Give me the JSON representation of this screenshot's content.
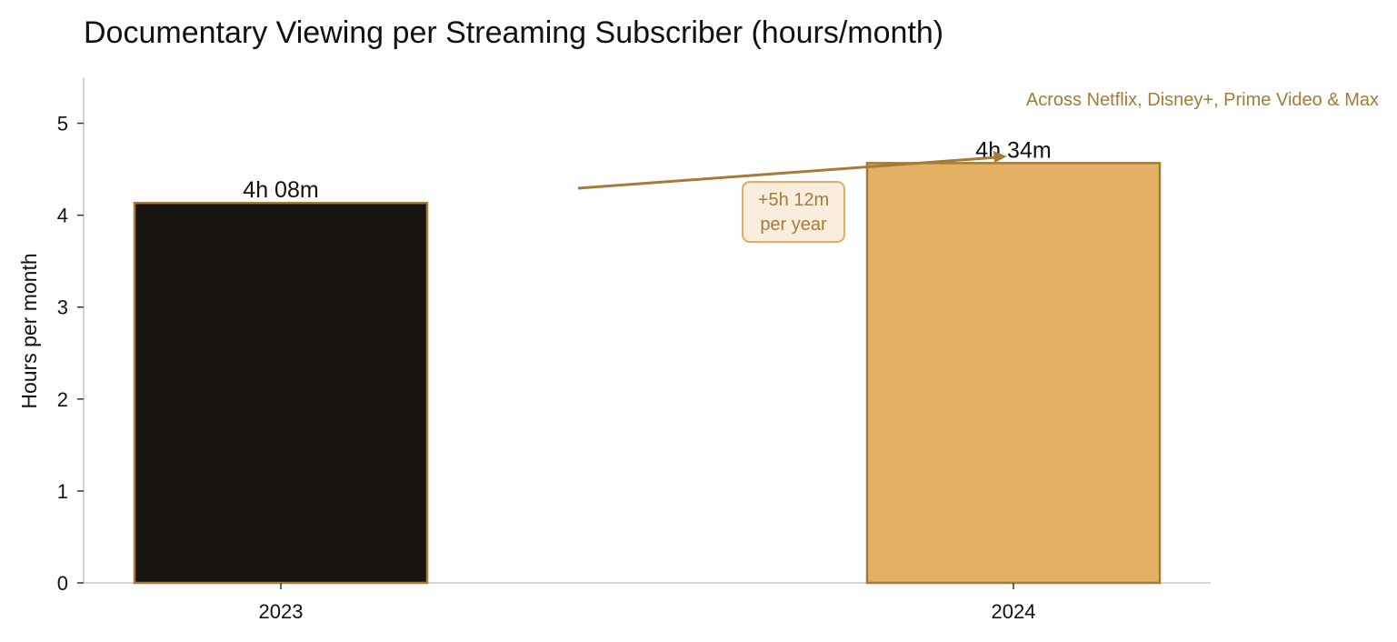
{
  "colors": {
    "accent": "#A57B37",
    "bar_2023": "#181511",
    "bar_2024": "#E3B064",
    "callout_bg": "#F9EDDD",
    "callout_border": "#E0AC62",
    "axis": "#C8C8C8"
  },
  "chart_data": {
    "type": "bar",
    "title": "Documentary Viewing per Streaming Subscriber (hours/month)",
    "subtitle": "Across Netflix, Disney+, Prime Video & Max",
    "xlabel": "",
    "ylabel": "Hours per month",
    "categories": [
      "2023",
      "2024"
    ],
    "values": [
      4.1333,
      4.5667
    ],
    "value_labels": [
      "4h 08m",
      "4h 34m"
    ],
    "ylim": [
      0,
      5.5
    ],
    "yticks": [
      0,
      1,
      2,
      3,
      4,
      5
    ],
    "grid": false,
    "annotation": {
      "line1": "+5h 12m",
      "line2": "per year"
    }
  }
}
